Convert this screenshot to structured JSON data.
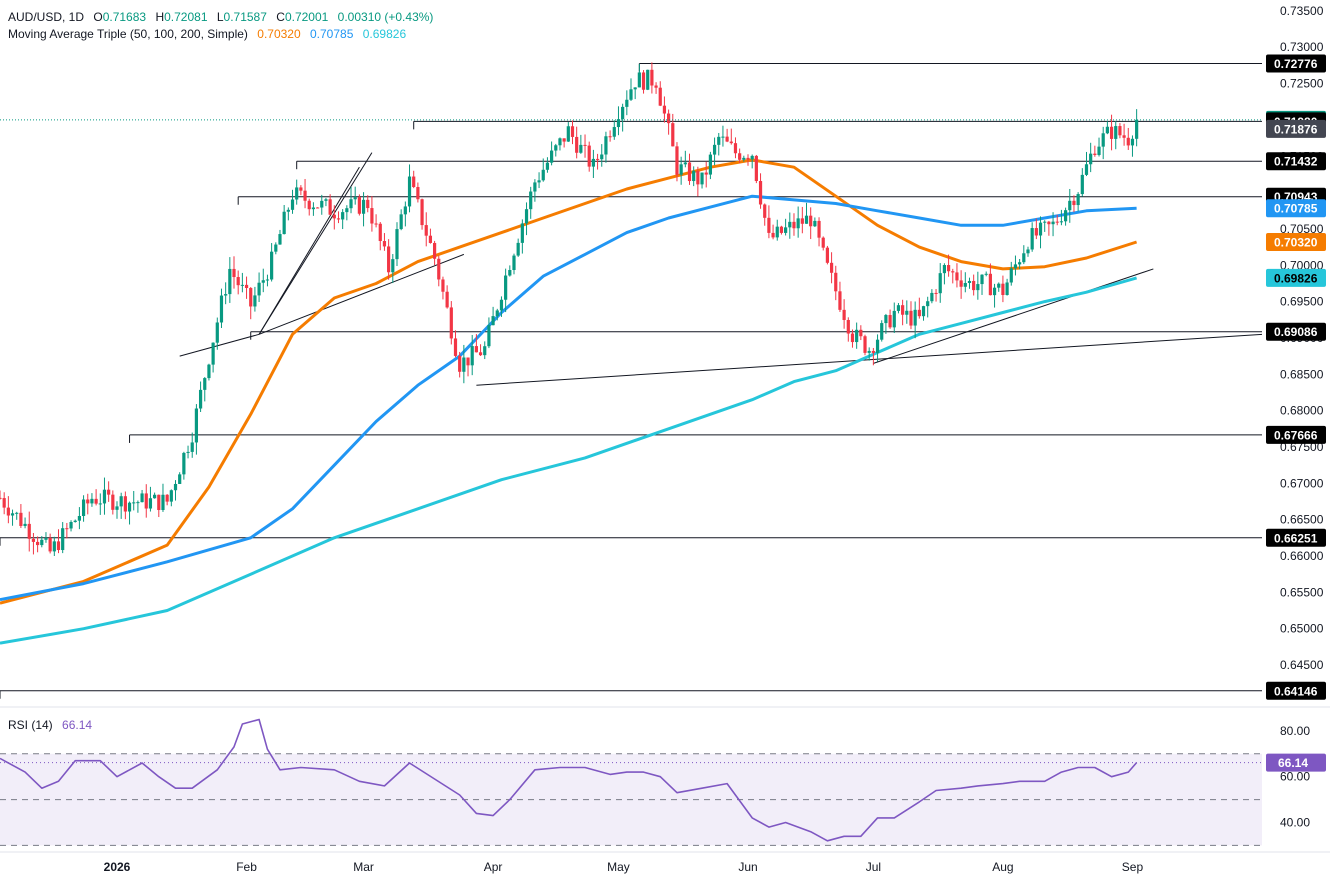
{
  "header": {
    "symbol": "AUD/USD, 1D",
    "open_label": "O",
    "open": "0.71683",
    "high_label": "H",
    "high": "0.72081",
    "low_label": "L",
    "low": "0.71587",
    "close_label": "C",
    "close": "0.72001",
    "change": "0.00310 (+0.43%)"
  },
  "ma_legend": {
    "title": "Moving Average Triple (50, 100, 200, Simple)",
    "ma50": "0.70320",
    "ma100": "0.70785",
    "ma200": "0.69826"
  },
  "rsi_legend": {
    "title": "RSI (14)",
    "value": "66.14"
  },
  "colors": {
    "up": "#089981",
    "down": "#f23645",
    "ma50": "#f57c00",
    "ma100": "#2196f3",
    "ma200": "#26c6da",
    "rsi": "#7e57c2",
    "level_line": "#131722"
  },
  "chart_data": {
    "type": "candlestick",
    "timeframe": "1D",
    "price_axis": {
      "ylim": [
        0.6395,
        0.7365
      ],
      "ticks": [
        "0.73500",
        "0.73000",
        "0.72500",
        "0.72000",
        "0.71500",
        "0.71000",
        "0.70500",
        "0.70000",
        "0.69500",
        "0.69000",
        "0.68500",
        "0.68000",
        "0.67500",
        "0.67000",
        "0.66500",
        "0.66000",
        "0.65500",
        "0.65000",
        "0.64500"
      ]
    },
    "x_axis": {
      "labels": [
        {
          "text": "2026",
          "day": 28
        },
        {
          "text": "Feb",
          "day": 59
        },
        {
          "text": "Mar",
          "day": 87
        },
        {
          "text": "Apr",
          "day": 118
        },
        {
          "text": "May",
          "day": 148
        },
        {
          "text": "Jun",
          "day": 179
        },
        {
          "text": "Jul",
          "day": 209
        },
        {
          "text": "Aug",
          "day": 240
        },
        {
          "text": "Sep",
          "day": 271
        }
      ],
      "day_range": [
        0,
        302
      ]
    },
    "price_path": [
      [
        0,
        0.668
      ],
      [
        12,
        0.6605
      ],
      [
        22,
        0.668
      ],
      [
        30,
        0.6675
      ],
      [
        40,
        0.6675
      ],
      [
        46,
        0.677
      ],
      [
        50,
        0.6875
      ],
      [
        55,
        0.6995
      ],
      [
        60,
        0.6945
      ],
      [
        65,
        0.7005
      ],
      [
        70,
        0.7098
      ],
      [
        80,
        0.7075
      ],
      [
        88,
        0.7085
      ],
      [
        93,
        0.6995
      ],
      [
        98,
        0.7115
      ],
      [
        104,
        0.701
      ],
      [
        110,
        0.6865
      ],
      [
        116,
        0.6885
      ],
      [
        122,
        0.7005
      ],
      [
        128,
        0.7115
      ],
      [
        136,
        0.7185
      ],
      [
        142,
        0.7135
      ],
      [
        148,
        0.7215
      ],
      [
        152,
        0.7255
      ],
      [
        157,
        0.7255
      ],
      [
        162,
        0.7135
      ],
      [
        168,
        0.7115
      ],
      [
        172,
        0.7175
      ],
      [
        176,
        0.7155
      ],
      [
        180,
        0.7155
      ],
      [
        184,
        0.7035
      ],
      [
        190,
        0.7055
      ],
      [
        194,
        0.7065
      ],
      [
        198,
        0.6995
      ],
      [
        204,
        0.6905
      ],
      [
        208,
        0.6885
      ],
      [
        214,
        0.6935
      ],
      [
        220,
        0.6925
      ],
      [
        226,
        0.6995
      ],
      [
        232,
        0.6975
      ],
      [
        236,
        0.6975
      ],
      [
        240,
        0.6965
      ],
      [
        246,
        0.7035
      ],
      [
        252,
        0.7055
      ],
      [
        258,
        0.7105
      ],
      [
        262,
        0.7165
      ],
      [
        266,
        0.7185
      ],
      [
        270,
        0.7175
      ],
      [
        272,
        0.72
      ]
    ],
    "moving_averages": [
      {
        "name": "50",
        "value": 0.7032,
        "points": [
          [
            0,
            0.6535
          ],
          [
            20,
            0.6565
          ],
          [
            40,
            0.6615
          ],
          [
            50,
            0.6695
          ],
          [
            60,
            0.6795
          ],
          [
            70,
            0.6905
          ],
          [
            80,
            0.6955
          ],
          [
            90,
            0.6975
          ],
          [
            100,
            0.7005
          ],
          [
            110,
            0.7025
          ],
          [
            120,
            0.7045
          ],
          [
            130,
            0.7065
          ],
          [
            140,
            0.7085
          ],
          [
            150,
            0.7105
          ],
          [
            160,
            0.712
          ],
          [
            170,
            0.7135
          ],
          [
            180,
            0.7145
          ],
          [
            190,
            0.7135
          ],
          [
            200,
            0.7095
          ],
          [
            210,
            0.7055
          ],
          [
            220,
            0.7025
          ],
          [
            230,
            0.7005
          ],
          [
            240,
            0.6995
          ],
          [
            250,
            0.6998
          ],
          [
            260,
            0.701
          ],
          [
            272,
            0.7032
          ]
        ]
      },
      {
        "name": "100",
        "value": 0.70785,
        "points": [
          [
            0,
            0.654
          ],
          [
            20,
            0.6562
          ],
          [
            40,
            0.6592
          ],
          [
            60,
            0.6625
          ],
          [
            70,
            0.6665
          ],
          [
            80,
            0.6725
          ],
          [
            90,
            0.6785
          ],
          [
            100,
            0.6835
          ],
          [
            110,
            0.6875
          ],
          [
            120,
            0.6935
          ],
          [
            130,
            0.6985
          ],
          [
            140,
            0.7015
          ],
          [
            150,
            0.7045
          ],
          [
            160,
            0.7065
          ],
          [
            170,
            0.708
          ],
          [
            180,
            0.7095
          ],
          [
            190,
            0.709
          ],
          [
            200,
            0.7085
          ],
          [
            210,
            0.7075
          ],
          [
            220,
            0.7065
          ],
          [
            230,
            0.7055
          ],
          [
            240,
            0.7055
          ],
          [
            250,
            0.7065
          ],
          [
            260,
            0.7075
          ],
          [
            272,
            0.70785
          ]
        ]
      },
      {
        "name": "200",
        "value": 0.69826,
        "points": [
          [
            0,
            0.648
          ],
          [
            20,
            0.65
          ],
          [
            40,
            0.6525
          ],
          [
            60,
            0.6575
          ],
          [
            80,
            0.6625
          ],
          [
            100,
            0.6665
          ],
          [
            120,
            0.6705
          ],
          [
            140,
            0.6735
          ],
          [
            160,
            0.6775
          ],
          [
            180,
            0.6815
          ],
          [
            190,
            0.684
          ],
          [
            200,
            0.6855
          ],
          [
            210,
            0.688
          ],
          [
            220,
            0.6905
          ],
          [
            230,
            0.692
          ],
          [
            240,
            0.6935
          ],
          [
            250,
            0.695
          ],
          [
            260,
            0.6963
          ],
          [
            272,
            0.69826
          ]
        ]
      }
    ],
    "horizontal_levels": [
      {
        "label": "0.72776",
        "value": 0.72776,
        "from_day": 153
      },
      {
        "label": "0.71980",
        "value": 0.7198,
        "from_day": 99
      },
      {
        "label": "0.71432",
        "value": 0.71432,
        "from_day": 71
      },
      {
        "label": "0.70943",
        "value": 0.70943,
        "from_day": 57
      },
      {
        "label": "0.69086",
        "value": 0.69086,
        "from_day": 60
      },
      {
        "label": "0.67666",
        "value": 0.67666,
        "from_day": 31
      },
      {
        "label": "0.66251",
        "value": 0.66251,
        "from_day": 0
      },
      {
        "label": "0.64146",
        "value": 0.64146,
        "from_day": 0
      }
    ],
    "trend_lines": [
      {
        "from": [
          62,
          0.6905
        ],
        "to": [
          89,
          0.7155
        ]
      },
      {
        "from": [
          62,
          0.6905
        ],
        "to": [
          86,
          0.7135
        ]
      },
      {
        "from": [
          62,
          0.6905
        ],
        "to": [
          111,
          0.7015
        ]
      },
      {
        "from": [
          43,
          0.6875
        ],
        "to": [
          62,
          0.6905
        ]
      },
      {
        "from": [
          114,
          0.6835
        ],
        "to": [
          302,
          0.6905
        ]
      },
      {
        "from": [
          209,
          0.6865
        ],
        "to": [
          276,
          0.6995
        ]
      }
    ],
    "price_labels": [
      {
        "label": "0.72776",
        "value": 0.72776,
        "bg": "#000000",
        "fg": "#ffffff"
      },
      {
        "label": "0.72001",
        "value": 0.72001,
        "bg": "#089981",
        "fg": "#ffffff"
      },
      {
        "label": "0.71980",
        "value": 0.7198,
        "bg": "#000000",
        "fg": "#ffffff"
      },
      {
        "label": "0.71876",
        "value": 0.71876,
        "bg": "#434651",
        "fg": "#ffffff"
      },
      {
        "label": "0.71432",
        "value": 0.71432,
        "bg": "#000000",
        "fg": "#ffffff"
      },
      {
        "label": "0.70943",
        "value": 0.70943,
        "bg": "#000000",
        "fg": "#ffffff"
      },
      {
        "label": "0.70785",
        "value": 0.70785,
        "bg": "#2196f3",
        "fg": "#ffffff"
      },
      {
        "label": "0.70320",
        "value": 0.7032,
        "bg": "#f57c00",
        "fg": "#ffffff"
      },
      {
        "label": "0.69826",
        "value": 0.69826,
        "bg": "#26c6da",
        "fg": "#000000"
      },
      {
        "label": "0.69086",
        "value": 0.69086,
        "bg": "#000000",
        "fg": "#ffffff"
      },
      {
        "label": "0.67666",
        "value": 0.67666,
        "bg": "#000000",
        "fg": "#ffffff"
      },
      {
        "label": "0.66251",
        "value": 0.66251,
        "bg": "#000000",
        "fg": "#ffffff"
      },
      {
        "label": "0.64146",
        "value": 0.64146,
        "bg": "#000000",
        "fg": "#ffffff"
      }
    ],
    "last_price": 0.72001,
    "rsi": {
      "period": 14,
      "value": 66.14,
      "ylim": [
        28,
        90
      ],
      "ticks": [
        "80.00",
        "60.00",
        "40.00"
      ],
      "band": [
        30,
        70
      ],
      "midline": 50,
      "points": [
        [
          0,
          68
        ],
        [
          6,
          62
        ],
        [
          10,
          55
        ],
        [
          14,
          58
        ],
        [
          18,
          67
        ],
        [
          24,
          67
        ],
        [
          28,
          60
        ],
        [
          34,
          66
        ],
        [
          38,
          60
        ],
        [
          42,
          55
        ],
        [
          46,
          55
        ],
        [
          52,
          63
        ],
        [
          56,
          73
        ],
        [
          58,
          83
        ],
        [
          62,
          85
        ],
        [
          64,
          72
        ],
        [
          67,
          63
        ],
        [
          72,
          64
        ],
        [
          80,
          63
        ],
        [
          86,
          58
        ],
        [
          92,
          56
        ],
        [
          98,
          66
        ],
        [
          104,
          59
        ],
        [
          110,
          52
        ],
        [
          114,
          44
        ],
        [
          118,
          43
        ],
        [
          122,
          50
        ],
        [
          128,
          63
        ],
        [
          134,
          64
        ],
        [
          140,
          64
        ],
        [
          146,
          61
        ],
        [
          150,
          62
        ],
        [
          154,
          62
        ],
        [
          158,
          60
        ],
        [
          162,
          53
        ],
        [
          168,
          55
        ],
        [
          174,
          57
        ],
        [
          180,
          42
        ],
        [
          184,
          38
        ],
        [
          188,
          40
        ],
        [
          194,
          36
        ],
        [
          198,
          32
        ],
        [
          202,
          34
        ],
        [
          206,
          34
        ],
        [
          210,
          42
        ],
        [
          214,
          42
        ],
        [
          220,
          49
        ],
        [
          224,
          54
        ],
        [
          230,
          55
        ],
        [
          234,
          56
        ],
        [
          240,
          57
        ],
        [
          244,
          58
        ],
        [
          250,
          58
        ],
        [
          254,
          62
        ],
        [
          258,
          64
        ],
        [
          262,
          64
        ],
        [
          266,
          60
        ],
        [
          270,
          62
        ],
        [
          272,
          66.14
        ]
      ]
    }
  }
}
